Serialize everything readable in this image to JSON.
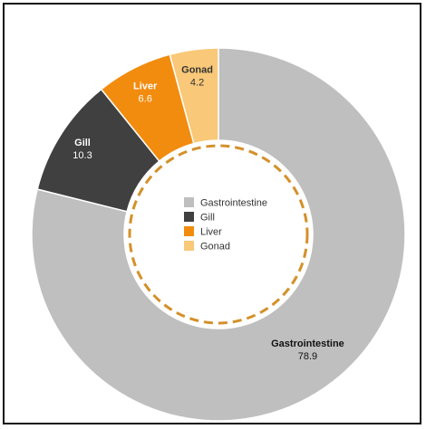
{
  "chart_data": {
    "type": "pie",
    "variant": "donut",
    "categories": [
      "Gastrointestine",
      "Gill",
      "Liver",
      "Gonad"
    ],
    "values": [
      78.9,
      10.3,
      6.6,
      4.2
    ],
    "colors": [
      "#bfbfbf",
      "#404040",
      "#f28c0f",
      "#f9c878"
    ],
    "label_colors": {
      "name": [
        "#111111",
        "#ffffff",
        "#ffffff",
        "#333333"
      ],
      "value": [
        "#111111",
        "#ffffff",
        "#ffffff",
        "#333333"
      ]
    },
    "legend": {
      "position": "center",
      "entries": [
        "Gastrointestine",
        "Gill",
        "Liver",
        "Gonad"
      ]
    },
    "center_ring_color": "#d4902a",
    "start": "top",
    "direction": "clockwise"
  }
}
